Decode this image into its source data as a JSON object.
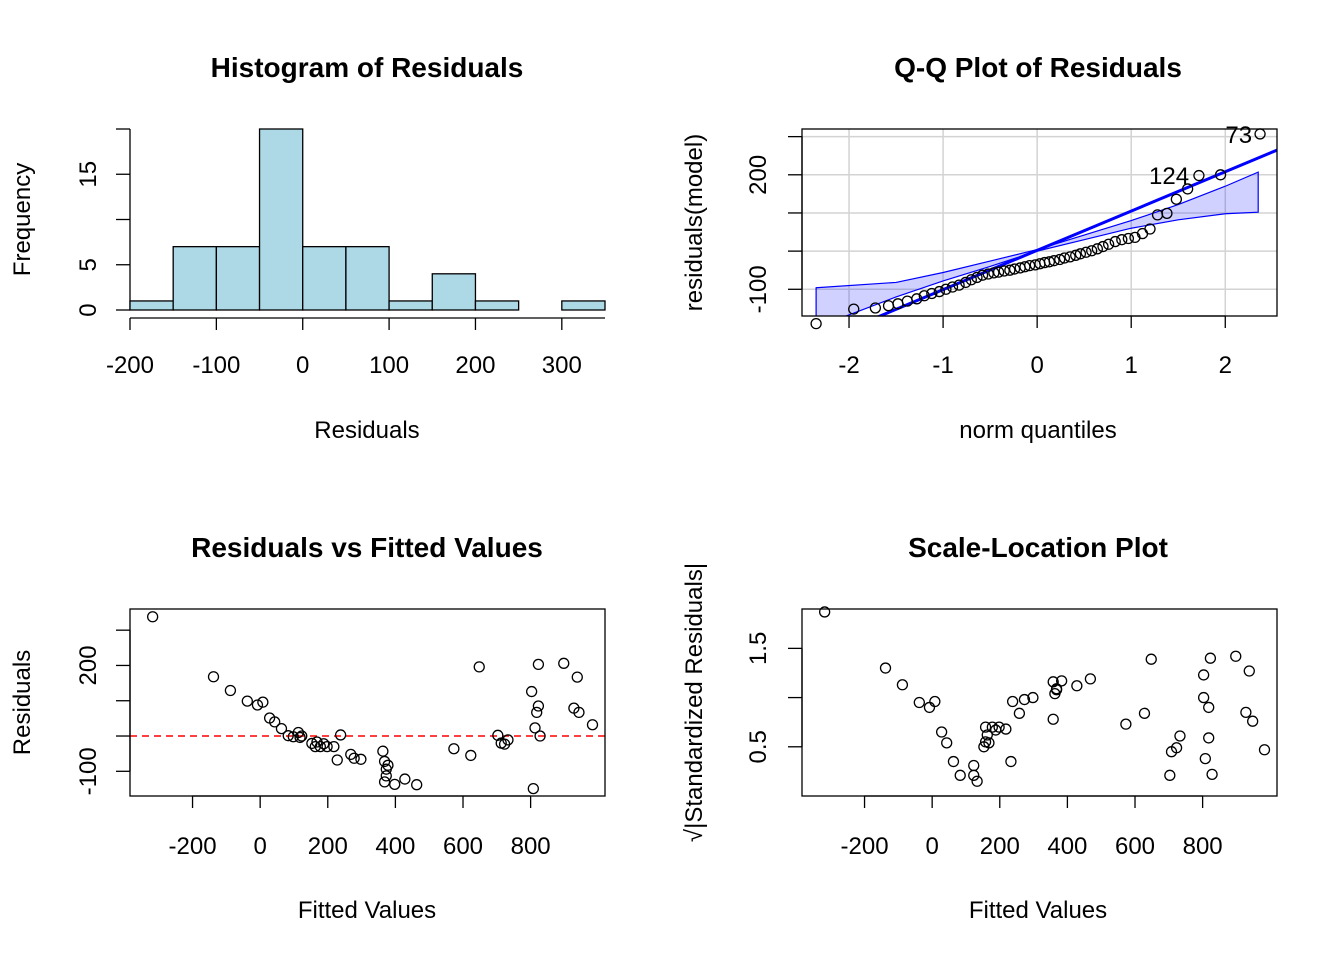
{
  "chart_data": [
    {
      "type": "bar",
      "title": "Histogram of Residuals",
      "xlabel": "Residuals",
      "ylabel": "Frequency",
      "bin_edges": [
        -200,
        -150,
        -100,
        -50,
        0,
        50,
        100,
        150,
        200,
        250,
        300,
        350
      ],
      "values": [
        1,
        7,
        7,
        20,
        7,
        7,
        1,
        4,
        1,
        0,
        1
      ],
      "xticks": [
        -200,
        -100,
        0,
        100,
        200,
        300
      ],
      "yticks": [
        0,
        5,
        10,
        15,
        20
      ],
      "ytick_labels": [
        "0",
        "5",
        "",
        "15",
        ""
      ],
      "xlim": [
        -200,
        350
      ],
      "ylim": [
        0,
        20
      ],
      "bar_color": "#add8e6"
    },
    {
      "type": "scatter",
      "title": "Q-Q Plot of Residuals",
      "xlabel": "norm quantiles",
      "ylabel": "residuals(model)",
      "xticks": [
        -2,
        -1,
        0,
        1,
        2
      ],
      "yticks": [
        -100,
        0,
        100,
        200,
        300
      ],
      "ytick_labels": [
        "-100",
        "",
        "",
        "200",
        ""
      ],
      "xlim": [
        -2.5,
        2.55
      ],
      "ylim": [
        -170,
        320
      ],
      "grid": true,
      "ref_line": {
        "intercept": 2,
        "slope": 103,
        "color": "#0000ff"
      },
      "band": {
        "lower": [
          [
            -2.35,
            -200
          ],
          [
            -1.5,
            -120
          ],
          [
            -1,
            -78
          ],
          [
            -0.5,
            -40
          ],
          [
            0,
            0
          ],
          [
            0.5,
            30
          ],
          [
            1,
            60
          ],
          [
            1.5,
            82
          ],
          [
            2,
            98
          ],
          [
            2.35,
            102
          ]
        ],
        "upper": [
          [
            -2.35,
            -96
          ],
          [
            -1.5,
            -82
          ],
          [
            -1,
            -56
          ],
          [
            -0.5,
            -26
          ],
          [
            0,
            4
          ],
          [
            0.5,
            42
          ],
          [
            1,
            80
          ],
          [
            1.5,
            122
          ],
          [
            2,
            170
          ],
          [
            2.35,
            207
          ]
        ],
        "color": "#0000ff"
      },
      "labels": [
        {
          "text": "73",
          "x": 2.37,
          "y": 307
        },
        {
          "text": "124",
          "x": 1.7,
          "y": 200
        }
      ],
      "points": [
        [
          -2.35,
          -190
        ],
        [
          -1.95,
          -152
        ],
        [
          -1.72,
          -149
        ],
        [
          -1.58,
          -143
        ],
        [
          -1.48,
          -138
        ],
        [
          -1.38,
          -131
        ],
        [
          -1.28,
          -125
        ],
        [
          -1.2,
          -117
        ],
        [
          -1.12,
          -111
        ],
        [
          -1.04,
          -106
        ],
        [
          -0.97,
          -100
        ],
        [
          -0.9,
          -94
        ],
        [
          -0.83,
          -89
        ],
        [
          -0.76,
          -82
        ],
        [
          -0.7,
          -75
        ],
        [
          -0.64,
          -69
        ],
        [
          -0.58,
          -63
        ],
        [
          -0.52,
          -60
        ],
        [
          -0.46,
          -57
        ],
        [
          -0.41,
          -55
        ],
        [
          -0.35,
          -52
        ],
        [
          -0.29,
          -50
        ],
        [
          -0.24,
          -47
        ],
        [
          -0.18,
          -44
        ],
        [
          -0.13,
          -41
        ],
        [
          -0.08,
          -38
        ],
        [
          -0.02,
          -36
        ],
        [
          0.03,
          -33
        ],
        [
          0.08,
          -30
        ],
        [
          0.13,
          -28
        ],
        [
          0.18,
          -25
        ],
        [
          0.24,
          -22
        ],
        [
          0.29,
          -18
        ],
        [
          0.35,
          -15
        ],
        [
          0.41,
          -11
        ],
        [
          0.46,
          -7
        ],
        [
          0.52,
          -3
        ],
        [
          0.58,
          1
        ],
        [
          0.64,
          6
        ],
        [
          0.7,
          12
        ],
        [
          0.76,
          18
        ],
        [
          0.83,
          25
        ],
        [
          0.9,
          30
        ],
        [
          0.97,
          33
        ],
        [
          1.04,
          36
        ],
        [
          1.12,
          46
        ],
        [
          1.2,
          58
        ],
        [
          1.28,
          95
        ],
        [
          1.38,
          99
        ],
        [
          1.48,
          136
        ],
        [
          1.6,
          163
        ],
        [
          1.72,
          198
        ],
        [
          1.95,
          200
        ],
        [
          2.37,
          307
        ]
      ]
    },
    {
      "type": "scatter",
      "title": "Residuals vs Fitted Values",
      "xlabel": "Fitted Values",
      "ylabel": "Residuals",
      "xticks": [
        -200,
        0,
        200,
        400,
        600,
        800
      ],
      "yticks": [
        -100,
        0,
        100,
        200,
        300
      ],
      "ytick_labels": [
        "-100",
        "",
        "",
        "200",
        ""
      ],
      "xlim": [
        -385,
        1020
      ],
      "ylim": [
        -170,
        360
      ],
      "hline": {
        "y": 0,
        "color": "#ff0000",
        "style": "dashed"
      },
      "points": [
        [
          -318,
          338
        ],
        [
          -138,
          168
        ],
        [
          -88,
          129
        ],
        [
          -38,
          99
        ],
        [
          -8,
          88
        ],
        [
          8,
          96
        ],
        [
          28,
          51
        ],
        [
          43,
          40
        ],
        [
          63,
          21
        ],
        [
          83,
          1
        ],
        [
          98,
          -2
        ],
        [
          113,
          10
        ],
        [
          118,
          -4
        ],
        [
          123,
          0
        ],
        [
          153,
          -21
        ],
        [
          163,
          -30
        ],
        [
          168,
          -17
        ],
        [
          178,
          -30
        ],
        [
          188,
          -22
        ],
        [
          198,
          -30
        ],
        [
          218,
          -30
        ],
        [
          228,
          -68
        ],
        [
          238,
          3
        ],
        [
          268,
          -52
        ],
        [
          278,
          -63
        ],
        [
          298,
          -66
        ],
        [
          363,
          -43
        ],
        [
          368,
          -72
        ],
        [
          368,
          -130
        ],
        [
          373,
          -94
        ],
        [
          373,
          -113
        ],
        [
          378,
          -83
        ],
        [
          398,
          -137
        ],
        [
          428,
          -122
        ],
        [
          463,
          -138
        ],
        [
          573,
          -36
        ],
        [
          623,
          -55
        ],
        [
          648,
          196
        ],
        [
          703,
          2
        ],
        [
          713,
          -20
        ],
        [
          733,
          -11
        ],
        [
          723,
          -23
        ],
        [
          803,
          126
        ],
        [
          808,
          -149
        ],
        [
          813,
          23
        ],
        [
          818,
          67
        ],
        [
          823,
          203
        ],
        [
          823,
          85
        ],
        [
          828,
          0
        ],
        [
          898,
          206
        ],
        [
          928,
          79
        ],
        [
          938,
          167
        ],
        [
          943,
          67
        ],
        [
          983,
          32
        ]
      ]
    },
    {
      "type": "scatter",
      "title": "Scale-Location Plot",
      "xlabel": "Fitted Values",
      "ylabel": "√|Standardized Residuals|",
      "xticks": [
        -200,
        0,
        200,
        400,
        600,
        800
      ],
      "yticks": [
        0.5,
        1.0,
        1.5
      ],
      "ytick_labels": [
        "0.5",
        "",
        "1.5"
      ],
      "xlim": [
        -385,
        1020
      ],
      "ylim": [
        0,
        1.9
      ],
      "points": [
        [
          -318,
          1.87
        ],
        [
          -138,
          1.3
        ],
        [
          -88,
          1.13
        ],
        [
          -38,
          0.95
        ],
        [
          -8,
          0.9
        ],
        [
          8,
          0.96
        ],
        [
          28,
          0.65
        ],
        [
          43,
          0.54
        ],
        [
          63,
          0.35
        ],
        [
          83,
          0.21
        ],
        [
          123,
          0.31
        ],
        [
          123,
          0.21
        ],
        [
          133,
          0.15
        ],
        [
          153,
          0.5
        ],
        [
          158,
          0.7
        ],
        [
          158,
          0.55
        ],
        [
          163,
          0.62
        ],
        [
          168,
          0.54
        ],
        [
          178,
          0.7
        ],
        [
          188,
          0.67
        ],
        [
          198,
          0.7
        ],
        [
          218,
          0.68
        ],
        [
          233,
          0.35
        ],
        [
          238,
          0.96
        ],
        [
          258,
          0.84
        ],
        [
          273,
          0.98
        ],
        [
          298,
          1.0
        ],
        [
          358,
          0.78
        ],
        [
          358,
          1.16
        ],
        [
          363,
          1.04
        ],
        [
          368,
          1.09
        ],
        [
          368,
          1.08
        ],
        [
          383,
          1.17
        ],
        [
          428,
          1.12
        ],
        [
          468,
          1.19
        ],
        [
          573,
          0.73
        ],
        [
          628,
          0.84
        ],
        [
          648,
          1.39
        ],
        [
          703,
          0.21
        ],
        [
          708,
          0.45
        ],
        [
          723,
          0.49
        ],
        [
          733,
          0.61
        ],
        [
          803,
          1.23
        ],
        [
          803,
          1.0
        ],
        [
          808,
          0.38
        ],
        [
          818,
          0.59
        ],
        [
          818,
          0.9
        ],
        [
          823,
          1.4
        ],
        [
          828,
          0.22
        ],
        [
          898,
          1.42
        ],
        [
          928,
          0.85
        ],
        [
          938,
          1.27
        ],
        [
          948,
          0.76
        ],
        [
          983,
          0.47
        ]
      ]
    }
  ]
}
